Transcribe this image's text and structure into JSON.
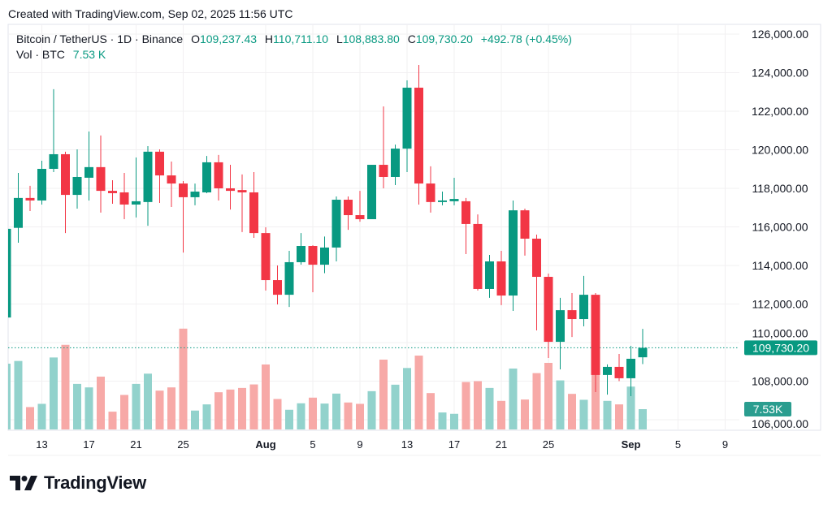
{
  "header": {
    "created": "Created with TradingView.com, Sep 02, 2025 11:56 UTC"
  },
  "legend": {
    "symbol": "Bitcoin / TetherUS · 1D · Binance",
    "o_label": "O",
    "o": "109,237.43",
    "h_label": "H",
    "h": "110,711.10",
    "l_label": "L",
    "l": "108,883.80",
    "c_label": "C",
    "c": "109,730.20",
    "change": "+492.78 (+0.45%)",
    "vol_label": "Vol · BTC",
    "vol": "7.53 K"
  },
  "brand": {
    "name": "TradingView",
    "logo_icon": "tradingview-logo-icon"
  },
  "colors": {
    "up": "#089981",
    "down": "#f23645",
    "vol_up": "#92d2cc",
    "vol_down": "#f7a9a7",
    "grid": "#f2f0f2"
  },
  "chart_data": {
    "type": "candlestick",
    "title": "",
    "ylim": [
      105500,
      126800
    ],
    "y_ticks": [
      "126,000.00",
      "124,000.00",
      "122,000.00",
      "120,000.00",
      "118,000.00",
      "116,000.00",
      "114,000.00",
      "112,000.00",
      "110,000.00",
      "108,000.00",
      "106,000.00"
    ],
    "y_tick_values": [
      126000,
      124000,
      122000,
      120000,
      118000,
      116000,
      114000,
      112000,
      110000,
      108000,
      106000
    ],
    "x_ticks": [
      {
        "label": "13",
        "date": "2025-07-13"
      },
      {
        "label": "17",
        "date": "2025-07-17"
      },
      {
        "label": "21",
        "date": "2025-07-21"
      },
      {
        "label": "25",
        "date": "2025-07-25"
      },
      {
        "label": "Aug",
        "date": "2025-08-01",
        "bold": true
      },
      {
        "label": "5",
        "date": "2025-08-05"
      },
      {
        "label": "9",
        "date": "2025-08-09"
      },
      {
        "label": "13",
        "date": "2025-08-13"
      },
      {
        "label": "17",
        "date": "2025-08-17"
      },
      {
        "label": "21",
        "date": "2025-08-21"
      },
      {
        "label": "25",
        "date": "2025-08-25"
      },
      {
        "label": "Sep",
        "date": "2025-09-01",
        "bold": true
      },
      {
        "label": "5",
        "date": "2025-09-05"
      },
      {
        "label": "9",
        "date": "2025-09-09"
      }
    ],
    "last_price_label": "109,730.20",
    "last_price": 109730.2,
    "last_volume_label": "7.53K",
    "volume_unit": "K BTC",
    "candles": [
      [
        "2025-07-10",
        111300,
        116000,
        111100,
        115900,
        24.4
      ],
      [
        "2025-07-11",
        115950,
        118800,
        115180,
        117500,
        25.4
      ],
      [
        "2025-07-12",
        117500,
        118130,
        116820,
        117370,
        8.3
      ],
      [
        "2025-07-13",
        117370,
        119430,
        117160,
        119010,
        9.5
      ],
      [
        "2025-07-14",
        119010,
        123140,
        118840,
        119770,
        26.7
      ],
      [
        "2025-07-15",
        119770,
        119900,
        115680,
        117660,
        31.4
      ],
      [
        "2025-07-16",
        117660,
        120020,
        116950,
        118590,
        16.9
      ],
      [
        "2025-07-17",
        118550,
        120950,
        117370,
        119100,
        15.6
      ],
      [
        "2025-07-18",
        119100,
        120740,
        116740,
        117870,
        19.6
      ],
      [
        "2025-07-19",
        117870,
        118420,
        117200,
        117750,
        6.6
      ],
      [
        "2025-07-20",
        117790,
        118800,
        116400,
        117160,
        12.8
      ],
      [
        "2025-07-21",
        117160,
        119600,
        116490,
        117330,
        16.9
      ],
      [
        "2025-07-22",
        117290,
        120190,
        116060,
        119900,
        20.7
      ],
      [
        "2025-07-23",
        119900,
        120020,
        117240,
        118670,
        14.4
      ],
      [
        "2025-07-24",
        118670,
        119390,
        117030,
        118250,
        15.6
      ],
      [
        "2025-07-25",
        118250,
        118380,
        114670,
        117540,
        37.4
      ],
      [
        "2025-07-26",
        117540,
        118250,
        117120,
        117830,
        7.0
      ],
      [
        "2025-07-27",
        117790,
        119680,
        117750,
        119350,
        9.3
      ],
      [
        "2025-07-28",
        119350,
        119730,
        117370,
        118000,
        13.8
      ],
      [
        "2025-07-29",
        118000,
        119220,
        116900,
        117870,
        14.8
      ],
      [
        "2025-07-30",
        117910,
        118720,
        115730,
        117790,
        15.4
      ],
      [
        "2025-07-31",
        117790,
        118840,
        115430,
        115680,
        16.7
      ],
      [
        "2025-08-01",
        115680,
        115980,
        112700,
        113240,
        24.1
      ],
      [
        "2025-08-02",
        113240,
        114000,
        111980,
        112480,
        11.3
      ],
      [
        "2025-08-03",
        112480,
        114760,
        111850,
        114170,
        7.3
      ],
      [
        "2025-08-04",
        114170,
        115680,
        114040,
        115010,
        9.7
      ],
      [
        "2025-08-05",
        115010,
        115050,
        112610,
        114040,
        11.8
      ],
      [
        "2025-08-06",
        114040,
        115500,
        113600,
        114930,
        9.6
      ],
      [
        "2025-08-07",
        114930,
        117580,
        114210,
        117410,
        13.3
      ],
      [
        "2025-08-08",
        117410,
        117580,
        115850,
        116610,
        10.0
      ],
      [
        "2025-08-09",
        116610,
        117870,
        116270,
        116400,
        9.5
      ],
      [
        "2025-08-10",
        116400,
        119220,
        116400,
        119220,
        14.2
      ],
      [
        "2025-08-11",
        119220,
        122250,
        118000,
        118590,
        25.9
      ],
      [
        "2025-08-12",
        118590,
        120270,
        118170,
        120060,
        16.6
      ],
      [
        "2025-08-13",
        120060,
        123600,
        118840,
        123220,
        22.8
      ],
      [
        "2025-08-14",
        123220,
        124400,
        117160,
        118250,
        27.4
      ],
      [
        "2025-08-15",
        118250,
        119140,
        116740,
        117290,
        13.5
      ],
      [
        "2025-08-16",
        117290,
        117830,
        117120,
        117370,
        6.3
      ],
      [
        "2025-08-17",
        117330,
        118550,
        117120,
        117450,
        5.8
      ],
      [
        "2025-08-18",
        117330,
        117500,
        114590,
        116150,
        17.6
      ],
      [
        "2025-08-19",
        116150,
        116650,
        112700,
        112780,
        17.9
      ],
      [
        "2025-08-20",
        112780,
        114550,
        112320,
        114210,
        15.4
      ],
      [
        "2025-08-21",
        114210,
        114760,
        111940,
        112440,
        10.6
      ],
      [
        "2025-08-22",
        112440,
        117370,
        111640,
        116860,
        22.6
      ],
      [
        "2025-08-23",
        116860,
        116950,
        114510,
        115390,
        11.1
      ],
      [
        "2025-08-24",
        115390,
        115600,
        110630,
        113410,
        20.9
      ],
      [
        "2025-08-25",
        113410,
        113580,
        109200,
        110040,
        24.7
      ],
      [
        "2025-08-26",
        110040,
        112320,
        108610,
        111680,
        18.2
      ],
      [
        "2025-08-27",
        111680,
        112570,
        110290,
        111220,
        13.2
      ],
      [
        "2025-08-28",
        111220,
        113460,
        110840,
        112480,
        11.0
      ],
      [
        "2025-08-29",
        112480,
        112570,
        107430,
        108320,
        22.1
      ],
      [
        "2025-08-30",
        108320,
        108870,
        107300,
        108740,
        10.6
      ],
      [
        "2025-08-31",
        108740,
        109410,
        108000,
        108150,
        9.3
      ],
      [
        "2025-09-01",
        108150,
        109830,
        107220,
        109160,
        15.9
      ],
      [
        "2025-09-02",
        109237.43,
        110711.1,
        108883.8,
        109730.2,
        7.53
      ]
    ],
    "candle_fields": [
      "date",
      "open",
      "high",
      "low",
      "close",
      "volume"
    ]
  }
}
